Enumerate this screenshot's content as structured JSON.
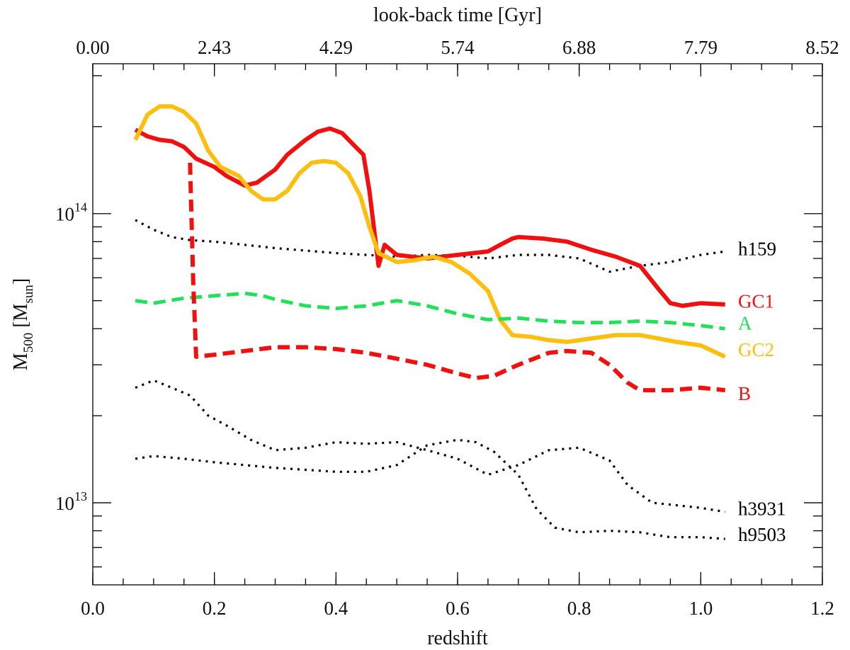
{
  "chart_data": {
    "type": "line",
    "title": "",
    "xlabel": "redshift",
    "ylabel_main": "M",
    "ylabel_sub": "500",
    "ylabel_unit_pre": " [M",
    "ylabel_unit_sub": "sun",
    "ylabel_unit_post": "]",
    "top_axis_label": "look-back time [Gyr]",
    "xlim": [
      0.0,
      1.2
    ],
    "ylim": [
      5200000000000.0,
      330000000000000.0
    ],
    "y_scale": "log",
    "grid": false,
    "x_ticks": [
      {
        "value": 0.0,
        "label": "0.0"
      },
      {
        "value": 0.2,
        "label": "0.2"
      },
      {
        "value": 0.4,
        "label": "0.4"
      },
      {
        "value": 0.6,
        "label": "0.6"
      },
      {
        "value": 0.8,
        "label": "0.8"
      },
      {
        "value": 1.0,
        "label": "1.0"
      },
      {
        "value": 1.2,
        "label": "1.2"
      }
    ],
    "x_minor_step": 0.05,
    "top_ticks": [
      {
        "value": 0.0,
        "label": "0.00"
      },
      {
        "value": 0.2,
        "label": "2.43"
      },
      {
        "value": 0.4,
        "label": "4.29"
      },
      {
        "value": 0.6,
        "label": "5.74"
      },
      {
        "value": 0.8,
        "label": "6.88"
      },
      {
        "value": 1.0,
        "label": "7.79"
      },
      {
        "value": 1.2,
        "label": "8.52"
      }
    ],
    "y_major_ticks": [
      {
        "value": 10000000000000.0,
        "base": "10",
        "exp": "13"
      },
      {
        "value": 100000000000000.0,
        "base": "10",
        "exp": "14"
      }
    ],
    "y_minor_ticks": [
      6000000000000.0,
      7000000000000.0,
      8000000000000.0,
      9000000000000.0,
      20000000000000.0,
      30000000000000.0,
      40000000000000.0,
      50000000000000.0,
      60000000000000.0,
      70000000000000.0,
      80000000000000.0,
      90000000000000.0,
      200000000000000.0,
      300000000000000.0
    ],
    "series": [
      {
        "name": "h159",
        "color": "#000000",
        "dash": "dotted",
        "width": 3.2,
        "x": [
          0.07,
          0.1,
          0.13,
          0.16,
          0.2,
          0.25,
          0.3,
          0.35,
          0.4,
          0.45,
          0.5,
          0.55,
          0.6,
          0.65,
          0.7,
          0.75,
          0.8,
          0.85,
          0.9,
          0.95,
          1.0,
          1.04
        ],
        "y": [
          95000000000000.0,
          88000000000000.0,
          83000000000000.0,
          81000000000000.0,
          80000000000000.0,
          78000000000000.0,
          76000000000000.0,
          74500000000000.0,
          73000000000000.0,
          72000000000000.0,
          71000000000000.0,
          72000000000000.0,
          71500000000000.0,
          70000000000000.0,
          72000000000000.0,
          72000000000000.0,
          70000000000000.0,
          63000000000000.0,
          66000000000000.0,
          68000000000000.0,
          72000000000000.0,
          74000000000000.0
        ]
      },
      {
        "name": "h3931",
        "color": "#000000",
        "dash": "dotted",
        "width": 3.2,
        "x": [
          0.07,
          0.1,
          0.13,
          0.16,
          0.19,
          0.22,
          0.26,
          0.3,
          0.35,
          0.4,
          0.45,
          0.5,
          0.55,
          0.6,
          0.65,
          0.7,
          0.75,
          0.8,
          0.85,
          0.88,
          0.92,
          0.96,
          1.0,
          1.04
        ],
        "y": [
          25000000000000.0,
          26500000000000.0,
          25000000000000.0,
          23500000000000.0,
          20000000000000.0,
          18500000000000.0,
          16500000000000.0,
          15200000000000.0,
          15500000000000.0,
          16200000000000.0,
          16000000000000.0,
          16200000000000.0,
          15200000000000.0,
          14200000000000.0,
          12500000000000.0,
          13500000000000.0,
          15200000000000.0,
          15500000000000.0,
          14000000000000.0,
          11500000000000.0,
          10000000000000.0,
          9800000000000.0,
          9600000000000.0,
          9300000000000.0
        ]
      },
      {
        "name": "h9503",
        "color": "#000000",
        "dash": "dotted",
        "width": 3.2,
        "x": [
          0.07,
          0.1,
          0.15,
          0.2,
          0.25,
          0.3,
          0.35,
          0.4,
          0.45,
          0.5,
          0.55,
          0.6,
          0.63,
          0.66,
          0.7,
          0.73,
          0.76,
          0.8,
          0.85,
          0.9,
          0.95,
          1.0,
          1.04
        ],
        "y": [
          14200000000000.0,
          14500000000000.0,
          14200000000000.0,
          13800000000000.0,
          13500000000000.0,
          13200000000000.0,
          13000000000000.0,
          12800000000000.0,
          12800000000000.0,
          13500000000000.0,
          15800000000000.0,
          16500000000000.0,
          16200000000000.0,
          15000000000000.0,
          12500000000000.0,
          9500000000000.0,
          8200000000000.0,
          7900000000000.0,
          8000000000000.0,
          7900000000000.0,
          7600000000000.0,
          7600000000000.0,
          7500000000000.0
        ]
      },
      {
        "name": "GC1",
        "color": "#f01010",
        "dash": "solid",
        "width": 6,
        "x": [
          0.07,
          0.09,
          0.11,
          0.13,
          0.15,
          0.17,
          0.2,
          0.22,
          0.25,
          0.27,
          0.3,
          0.32,
          0.35,
          0.37,
          0.39,
          0.41,
          0.43,
          0.445,
          0.455,
          0.47,
          0.48,
          0.5,
          0.55,
          0.6,
          0.65,
          0.67,
          0.69,
          0.7,
          0.74,
          0.78,
          0.82,
          0.86,
          0.9,
          0.93,
          0.95,
          0.97,
          1.0,
          1.04
        ],
        "y": [
          195000000000000.0,
          185000000000000.0,
          180000000000000.0,
          178000000000000.0,
          170000000000000.0,
          155000000000000.0,
          145000000000000.0,
          135000000000000.0,
          125000000000000.0,
          128000000000000.0,
          142000000000000.0,
          160000000000000.0,
          180000000000000.0,
          192000000000000.0,
          197000000000000.0,
          190000000000000.0,
          172000000000000.0,
          160000000000000.0,
          120000000000000.0,
          66000000000000.0,
          78000000000000.0,
          72000000000000.0,
          70000000000000.0,
          72000000000000.0,
          74000000000000.0,
          78000000000000.0,
          82000000000000.0,
          83000000000000.0,
          82000000000000.0,
          80000000000000.0,
          75000000000000.0,
          71000000000000.0,
          66000000000000.0,
          55000000000000.0,
          49000000000000.0,
          48000000000000.0,
          49000000000000.0,
          48500000000000.0
        ]
      },
      {
        "name": "GC2",
        "color": "#fbbf10",
        "dash": "solid",
        "width": 6,
        "x": [
          0.07,
          0.09,
          0.11,
          0.13,
          0.15,
          0.17,
          0.19,
          0.21,
          0.24,
          0.26,
          0.28,
          0.3,
          0.32,
          0.34,
          0.36,
          0.38,
          0.4,
          0.42,
          0.44,
          0.455,
          0.47,
          0.5,
          0.53,
          0.56,
          0.59,
          0.62,
          0.65,
          0.67,
          0.69,
          0.72,
          0.75,
          0.78,
          0.82,
          0.86,
          0.9,
          0.93,
          0.96,
          1.0,
          1.04
        ],
        "y": [
          180000000000000.0,
          220000000000000.0,
          235000000000000.0,
          235000000000000.0,
          225000000000000.0,
          205000000000000.0,
          165000000000000.0,
          145000000000000.0,
          135000000000000.0,
          120000000000000.0,
          112000000000000.0,
          112000000000000.0,
          120000000000000.0,
          138000000000000.0,
          150000000000000.0,
          152000000000000.0,
          150000000000000.0,
          138000000000000.0,
          115000000000000.0,
          90000000000000.0,
          73000000000000.0,
          68000000000000.0,
          69000000000000.0,
          71000000000000.0,
          68000000000000.0,
          62000000000000.0,
          54000000000000.0,
          43000000000000.0,
          38000000000000.0,
          37500000000000.0,
          36500000000000.0,
          36000000000000.0,
          37000000000000.0,
          38000000000000.0,
          38000000000000.0,
          37000000000000.0,
          36000000000000.0,
          35000000000000.0,
          32000000000000.0
        ]
      },
      {
        "name": "A",
        "color": "#22e05a",
        "dash": "dashed",
        "width": 5,
        "x": [
          0.07,
          0.1,
          0.15,
          0.2,
          0.25,
          0.28,
          0.3,
          0.35,
          0.4,
          0.45,
          0.5,
          0.55,
          0.6,
          0.65,
          0.7,
          0.75,
          0.8,
          0.85,
          0.9,
          0.95,
          1.0,
          1.04
        ],
        "y": [
          50000000000000.0,
          49000000000000.0,
          51000000000000.0,
          52000000000000.0,
          53000000000000.0,
          52000000000000.0,
          50500000000000.0,
          48000000000000.0,
          47000000000000.0,
          48000000000000.0,
          50000000000000.0,
          48000000000000.0,
          45000000000000.0,
          43000000000000.0,
          43500000000000.0,
          42500000000000.0,
          42000000000000.0,
          42000000000000.0,
          42500000000000.0,
          42000000000000.0,
          41000000000000.0,
          40000000000000.0
        ]
      },
      {
        "name": "B",
        "color": "#f01010",
        "dash": "dashed",
        "width": 6,
        "x": [
          0.16,
          0.165,
          0.17,
          0.2,
          0.25,
          0.3,
          0.35,
          0.4,
          0.45,
          0.5,
          0.55,
          0.6,
          0.63,
          0.66,
          0.7,
          0.75,
          0.78,
          0.82,
          0.85,
          0.88,
          0.9,
          0.95,
          1.0,
          1.04
        ],
        "y": [
          150000000000000.0,
          60000000000000.0,
          32000000000000.0,
          32500000000000.0,
          33500000000000.0,
          34500000000000.0,
          34500000000000.0,
          34000000000000.0,
          33000000000000.0,
          31500000000000.0,
          30000000000000.0,
          28000000000000.0,
          27000000000000.0,
          27500000000000.0,
          30000000000000.0,
          33000000000000.0,
          33500000000000.0,
          33000000000000.0,
          30000000000000.0,
          26000000000000.0,
          24500000000000.0,
          24500000000000.0,
          25000000000000.0,
          24500000000000.0
        ]
      }
    ],
    "labels": [
      {
        "text": "h159",
        "color": "#000000",
        "y": 76000000000000.0
      },
      {
        "text": "GC1",
        "color": "#f01010",
        "y": 50000000000000.0
      },
      {
        "text": "A",
        "color": "#22e05a",
        "y": 42000000000000.0
      },
      {
        "text": "GC2",
        "color": "#fbbf10",
        "y": 34000000000000.0
      },
      {
        "text": "B",
        "color": "#f01010",
        "y": 24000000000000.0
      },
      {
        "text": "h3931",
        "color": "#000000",
        "y": 9600000000000.0
      },
      {
        "text": "h9503",
        "color": "#000000",
        "y": 7800000000000.0
      }
    ]
  }
}
